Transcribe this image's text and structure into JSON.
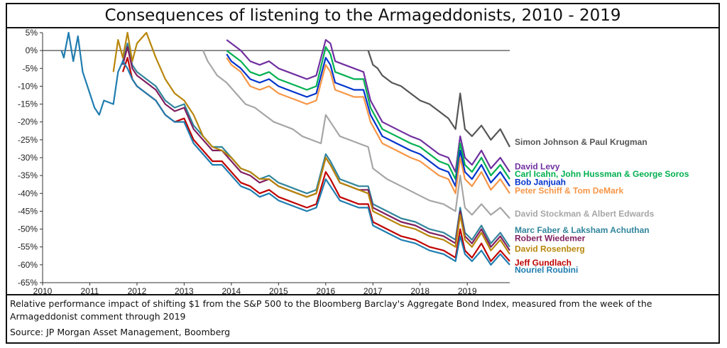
{
  "title": "Consequences of listening to the Armageddonists, 2010 - 2019",
  "notes": {
    "description": "Relative performance impact of shifting $1 from the S&P 500 to the Bloomberg Barclay's Aggregate Bond Index, measured from the week of the Armageddonist comment through 2019",
    "source": "Source: JP Morgan Asset Management, Boomberg"
  },
  "chart_data": {
    "type": "line",
    "title": "Consequences of listening to the Armageddonists, 2010 - 2019",
    "xlabel": "",
    "ylabel": "",
    "xlim": [
      2010,
      2019.9
    ],
    "ylim": [
      -65,
      5
    ],
    "x_ticks": [
      "2010",
      "2011",
      "2012",
      "2013",
      "2014",
      "2015",
      "2016",
      "2017",
      "2018",
      "2019"
    ],
    "y_ticks": [
      "5%",
      "0%",
      "-5%",
      "-10%",
      "-15%",
      "-20%",
      "-25%",
      "-30%",
      "-35%",
      "-40%",
      "-45%",
      "-50%",
      "-55%",
      "-60%",
      "-65%"
    ],
    "grid": false,
    "zero_line": true,
    "series": [
      {
        "name": "Simon Johnson & Paul Krugman",
        "color": "#555555",
        "x": [
          2016.9,
          2017.0,
          2017.1,
          2017.2,
          2017.4,
          2017.6,
          2017.8,
          2018.0,
          2018.2,
          2018.4,
          2018.6,
          2018.75,
          2018.85,
          2018.95,
          2019.1,
          2019.3,
          2019.5,
          2019.7,
          2019.9
        ],
        "values": [
          0,
          -4,
          -5,
          -7,
          -9,
          -10,
          -12,
          -14,
          -15,
          -17,
          -19,
          -22,
          -12,
          -22,
          -24,
          -21,
          -25,
          -22,
          -27
        ]
      },
      {
        "name": "David Levy",
        "color": "#7030A0",
        "x": [
          2013.9,
          2014.0,
          2014.2,
          2014.4,
          2014.6,
          2014.8,
          2015.0,
          2015.2,
          2015.4,
          2015.6,
          2015.8,
          2016.0,
          2016.1,
          2016.2,
          2016.4,
          2016.6,
          2016.8,
          2016.95,
          2017.2,
          2017.5,
          2017.8,
          2018.0,
          2018.2,
          2018.4,
          2018.6,
          2018.75,
          2018.85,
          2018.95,
          2019.1,
          2019.3,
          2019.5,
          2019.7,
          2019.9
        ],
        "values": [
          3,
          2,
          0,
          -3,
          -4,
          -3,
          -5,
          -6,
          -7,
          -8,
          -7,
          3,
          2,
          -3,
          -4,
          -5,
          -6,
          -14,
          -20,
          -22,
          -24,
          -25,
          -27,
          -29,
          -30,
          -34,
          -24,
          -30,
          -32,
          -28,
          -33,
          -30,
          -34
        ]
      },
      {
        "name": "Carl Icahn, John Hussman & George Soros",
        "color": "#00B050",
        "x": [
          2013.9,
          2014.0,
          2014.2,
          2014.4,
          2014.6,
          2014.8,
          2015.0,
          2015.2,
          2015.4,
          2015.6,
          2015.8,
          2016.0,
          2016.1,
          2016.2,
          2016.4,
          2016.6,
          2016.8,
          2016.95,
          2017.2,
          2017.5,
          2017.8,
          2018.0,
          2018.2,
          2018.4,
          2018.6,
          2018.75,
          2018.85,
          2018.95,
          2019.1,
          2019.3,
          2019.5,
          2019.7,
          2019.9
        ],
        "values": [
          0,
          -1,
          -3,
          -6,
          -7,
          -6,
          -8,
          -9,
          -10,
          -11,
          -10,
          1,
          -1,
          -6,
          -7,
          -8,
          -8,
          -16,
          -22,
          -24,
          -26,
          -27,
          -29,
          -31,
          -32,
          -36,
          -26,
          -32,
          -34,
          -30,
          -35,
          -32,
          -36
        ]
      },
      {
        "name": "Bob Janjuah",
        "color": "#0033CC",
        "x": [
          2013.9,
          2014.0,
          2014.2,
          2014.4,
          2014.6,
          2014.8,
          2015.0,
          2015.2,
          2015.4,
          2015.6,
          2015.8,
          2016.0,
          2016.1,
          2016.2,
          2016.4,
          2016.6,
          2016.8,
          2016.95,
          2017.2,
          2017.5,
          2017.8,
          2018.0,
          2018.2,
          2018.4,
          2018.6,
          2018.75,
          2018.85,
          2018.95,
          2019.1,
          2019.3,
          2019.5,
          2019.7,
          2019.9
        ],
        "values": [
          -1,
          -3,
          -5,
          -8,
          -9,
          -8,
          -10,
          -11,
          -12,
          -13,
          -12,
          -2,
          -4,
          -9,
          -10,
          -11,
          -11,
          -18,
          -24,
          -26,
          -28,
          -29,
          -31,
          -33,
          -34,
          -38,
          -28,
          -34,
          -36,
          -32,
          -37,
          -34,
          -38
        ]
      },
      {
        "name": "Peter Schiff & Tom DeMark",
        "color": "#F79646",
        "x": [
          2013.9,
          2014.0,
          2014.2,
          2014.4,
          2014.6,
          2014.8,
          2015.0,
          2015.2,
          2015.4,
          2015.6,
          2015.8,
          2016.0,
          2016.1,
          2016.2,
          2016.4,
          2016.6,
          2016.8,
          2016.95,
          2017.2,
          2017.5,
          2017.8,
          2018.0,
          2018.2,
          2018.4,
          2018.6,
          2018.75,
          2018.85,
          2018.95,
          2019.1,
          2019.3,
          2019.5,
          2019.7,
          2019.9
        ],
        "values": [
          -2,
          -4,
          -6,
          -10,
          -11,
          -10,
          -12,
          -13,
          -14,
          -15,
          -14,
          -4,
          -6,
          -11,
          -12,
          -13,
          -13,
          -20,
          -26,
          -28,
          -30,
          -31,
          -33,
          -35,
          -36,
          -40,
          -30,
          -36,
          -38,
          -34,
          -39,
          -36,
          -40
        ]
      },
      {
        "name": "David Stockman & Albert Edwards",
        "color": "#A6A6A6",
        "x": [
          2013.4,
          2013.5,
          2013.7,
          2013.9,
          2014.1,
          2014.3,
          2014.5,
          2014.7,
          2014.9,
          2015.1,
          2015.3,
          2015.5,
          2015.7,
          2015.9,
          2016.0,
          2016.1,
          2016.3,
          2016.5,
          2016.7,
          2016.9,
          2017.0,
          2017.3,
          2017.6,
          2017.9,
          2018.2,
          2018.5,
          2018.75,
          2018.85,
          2018.95,
          2019.1,
          2019.3,
          2019.5,
          2019.7,
          2019.9
        ],
        "values": [
          0,
          -3,
          -7,
          -9,
          -12,
          -15,
          -16,
          -18,
          -20,
          -21,
          -22,
          -24,
          -25,
          -26,
          -18,
          -20,
          -24,
          -25,
          -26,
          -27,
          -33,
          -36,
          -38,
          -40,
          -42,
          -43,
          -45,
          -35,
          -44,
          -46,
          -43,
          -46,
          -44,
          -47
        ]
      },
      {
        "name": "Marc Faber & Laksham Achuthan",
        "color": "#31859C",
        "x": [
          2011.7,
          2011.8,
          2011.9,
          2012.0,
          2012.2,
          2012.4,
          2012.6,
          2012.8,
          2013.0,
          2013.2,
          2013.4,
          2013.6,
          2013.8,
          2014.0,
          2014.2,
          2014.4,
          2014.6,
          2014.8,
          2015.0,
          2015.2,
          2015.4,
          2015.6,
          2015.8,
          2016.0,
          2016.1,
          2016.3,
          2016.5,
          2016.7,
          2016.9,
          2017.0,
          2017.3,
          2017.6,
          2017.9,
          2018.2,
          2018.5,
          2018.75,
          2018.85,
          2018.95,
          2019.1,
          2019.3,
          2019.5,
          2019.7,
          2019.9
        ],
        "values": [
          -3,
          2,
          -4,
          -6,
          -8,
          -10,
          -14,
          -16,
          -15,
          -21,
          -24,
          -27,
          -27,
          -30,
          -33,
          -34,
          -36,
          -35,
          -37,
          -38,
          -39,
          -40,
          -39,
          -29,
          -31,
          -36,
          -37,
          -38,
          -38,
          -43,
          -45,
          -47,
          -48,
          -50,
          -51,
          -53,
          -44,
          -51,
          -53,
          -49,
          -54,
          -51,
          -55
        ]
      },
      {
        "name": "Robert Wiedemer",
        "color": "#7F1F5F",
        "x": [
          2011.7,
          2011.8,
          2011.9,
          2012.0,
          2012.2,
          2012.4,
          2012.6,
          2012.8,
          2013.0,
          2013.2,
          2013.4,
          2013.6,
          2013.8,
          2014.0,
          2014.2,
          2014.4,
          2014.6,
          2014.8,
          2015.0,
          2015.2,
          2015.4,
          2015.6,
          2015.8,
          2016.0,
          2016.1,
          2016.3,
          2016.5,
          2016.7,
          2016.9,
          2017.0,
          2017.3,
          2017.6,
          2017.9,
          2018.2,
          2018.5,
          2018.75,
          2018.85,
          2018.95,
          2019.1,
          2019.3,
          2019.5,
          2019.7,
          2019.9
        ],
        "values": [
          -4,
          1,
          -5,
          -7,
          -9,
          -11,
          -15,
          -17,
          -16,
          -22,
          -25,
          -28,
          -28,
          -31,
          -34,
          -35,
          -37,
          -36,
          -38,
          -39,
          -40,
          -41,
          -40,
          -30,
          -32,
          -37,
          -38,
          -39,
          -39,
          -44,
          -46,
          -48,
          -49,
          -51,
          -52,
          -54,
          -45,
          -52,
          -54,
          -50,
          -55,
          -52,
          -56
        ]
      },
      {
        "name": "David Rosenberg",
        "color": "#B8860B",
        "x": [
          2011.5,
          2011.6,
          2011.7,
          2011.8,
          2011.9,
          2012.0,
          2012.2,
          2012.4,
          2012.6,
          2012.8,
          2013.0,
          2013.2,
          2013.4,
          2013.6,
          2013.8,
          2014.0,
          2014.2,
          2014.4,
          2014.6,
          2014.8,
          2015.0,
          2015.2,
          2015.4,
          2015.6,
          2015.8,
          2016.0,
          2016.1,
          2016.3,
          2016.5,
          2016.7,
          2016.9,
          2017.0,
          2017.3,
          2017.6,
          2017.9,
          2018.2,
          2018.5,
          2018.75,
          2018.85,
          2018.95,
          2019.1,
          2019.3,
          2019.5,
          2019.7,
          2019.9
        ],
        "values": [
          -6,
          3,
          -2,
          5,
          -3,
          2,
          5,
          -2,
          -8,
          -12,
          -14,
          -18,
          -24,
          -27,
          -28,
          -30,
          -33,
          -34,
          -36,
          -36,
          -38,
          -39,
          -40,
          -41,
          -40,
          -30,
          -32,
          -37,
          -38,
          -39,
          -40,
          -45,
          -47,
          -49,
          -50,
          -52,
          -53,
          -55,
          -46,
          -53,
          -55,
          -51,
          -56,
          -53,
          -57
        ]
      },
      {
        "name": "Jeff Gundlach",
        "color": "#C00000",
        "x": [
          2011.7,
          2011.8,
          2011.9,
          2012.0,
          2012.2,
          2012.4,
          2012.6,
          2012.8,
          2013.0,
          2013.2,
          2013.4,
          2013.6,
          2013.8,
          2014.0,
          2014.2,
          2014.4,
          2014.6,
          2014.8,
          2015.0,
          2015.2,
          2015.4,
          2015.6,
          2015.8,
          2016.0,
          2016.1,
          2016.3,
          2016.5,
          2016.7,
          2016.9,
          2017.0,
          2017.3,
          2017.6,
          2017.9,
          2018.2,
          2018.5,
          2018.75,
          2018.85,
          2018.95,
          2019.1,
          2019.3,
          2019.5,
          2019.7,
          2019.9
        ],
        "values": [
          -6,
          -2,
          -8,
          -10,
          -12,
          -14,
          -18,
          -20,
          -19,
          -25,
          -28,
          -31,
          -31,
          -34,
          -37,
          -38,
          -40,
          -39,
          -41,
          -42,
          -43,
          -44,
          -43,
          -34,
          -36,
          -41,
          -42,
          -43,
          -43,
          -48,
          -50,
          -52,
          -53,
          -55,
          -56,
          -58,
          -50,
          -56,
          -58,
          -54,
          -59,
          -56,
          -59
        ]
      },
      {
        "name": "Nouriel Roubini",
        "color": "#1F7DB0",
        "x": [
          2010.4,
          2010.45,
          2010.55,
          2010.65,
          2010.75,
          2010.85,
          2011.0,
          2011.1,
          2011.2,
          2011.3,
          2011.5,
          2011.6,
          2011.7,
          2011.8,
          2011.9,
          2012.0,
          2012.2,
          2012.4,
          2012.6,
          2012.8,
          2013.0,
          2013.2,
          2013.4,
          2013.6,
          2013.8,
          2014.0,
          2014.2,
          2014.4,
          2014.6,
          2014.8,
          2015.0,
          2015.2,
          2015.4,
          2015.6,
          2015.8,
          2016.0,
          2016.1,
          2016.3,
          2016.5,
          2016.7,
          2016.9,
          2017.0,
          2017.3,
          2017.6,
          2017.9,
          2018.2,
          2018.5,
          2018.75,
          2018.85,
          2018.95,
          2019.1,
          2019.3,
          2019.5,
          2019.7,
          2019.9
        ],
        "values": [
          0,
          -2,
          5,
          -3,
          4,
          -6,
          -12,
          -16,
          -18,
          -14,
          -15,
          -6,
          -3,
          -5,
          -8,
          -10,
          -12,
          -14,
          -18,
          -20,
          -20,
          -26,
          -29,
          -32,
          -32,
          -35,
          -38,
          -39,
          -41,
          -40,
          -42,
          -43,
          -44,
          -45,
          -44,
          -36,
          -38,
          -42,
          -43,
          -44,
          -44,
          -49,
          -51,
          -53,
          -54,
          -56,
          -57,
          -59,
          -52,
          -57,
          -59,
          -56,
          -60,
          -57,
          -60
        ]
      }
    ]
  }
}
